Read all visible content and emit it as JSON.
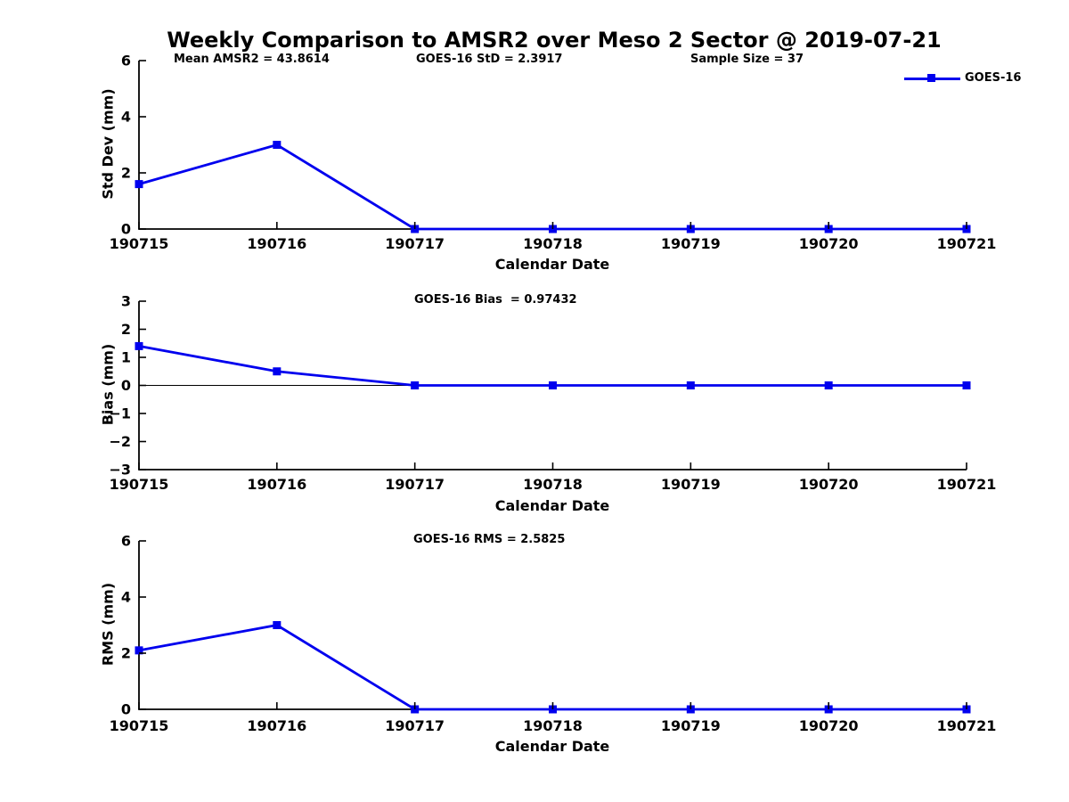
{
  "title": "Weekly Comparison to AMSR2 over Meso 2 Sector @ 2019-07-21",
  "legend": {
    "label": "GOES-16",
    "position": "top-right"
  },
  "colors": {
    "line": "#0000EE",
    "axis": "#000000",
    "text": "#000000",
    "background": "#FFFFFF"
  },
  "chart_data": [
    {
      "type": "line",
      "name": "std-dev",
      "ylabel": "Std Dev (mm)",
      "xlabel": "Calendar Date",
      "annotations": [
        "Mean AMSR2 = 43.8614",
        "GOES-16 StD = 2.3917",
        "Sample Size = 37"
      ],
      "categories": [
        "190715",
        "190716",
        "190717",
        "190718",
        "190719",
        "190720",
        "190721"
      ],
      "series": [
        {
          "name": "GOES-16",
          "values": [
            1.6,
            3.0,
            0,
            0,
            0,
            0,
            0
          ]
        }
      ],
      "ylim": [
        0,
        6
      ],
      "yticks": [
        0,
        2,
        4,
        6
      ],
      "zero_line": false,
      "grid": false,
      "legend_position": "top-right"
    },
    {
      "type": "line",
      "name": "bias",
      "ylabel": "Bias (mm)",
      "xlabel": "Calendar Date",
      "annotations": [
        "GOES-16 Bias  = 0.97432"
      ],
      "categories": [
        "190715",
        "190716",
        "190717",
        "190718",
        "190719",
        "190720",
        "190721"
      ],
      "series": [
        {
          "name": "GOES-16",
          "values": [
            1.4,
            0.5,
            0,
            0,
            0,
            0,
            0
          ]
        }
      ],
      "ylim": [
        -3,
        3
      ],
      "yticks": [
        3,
        2,
        1,
        0,
        -1,
        -2,
        -3
      ],
      "zero_line": true,
      "grid": false
    },
    {
      "type": "line",
      "name": "rms",
      "ylabel": "RMS (mm)",
      "xlabel": "Calendar Date",
      "annotations": [
        "GOES-16 RMS = 2.5825"
      ],
      "categories": [
        "190715",
        "190716",
        "190717",
        "190718",
        "190719",
        "190720",
        "190721"
      ],
      "series": [
        {
          "name": "GOES-16",
          "values": [
            2.1,
            3.0,
            0,
            0,
            0,
            0,
            0
          ]
        }
      ],
      "ylim": [
        0,
        6
      ],
      "yticks": [
        0,
        2,
        4,
        6
      ],
      "zero_line": false,
      "grid": false
    }
  ]
}
